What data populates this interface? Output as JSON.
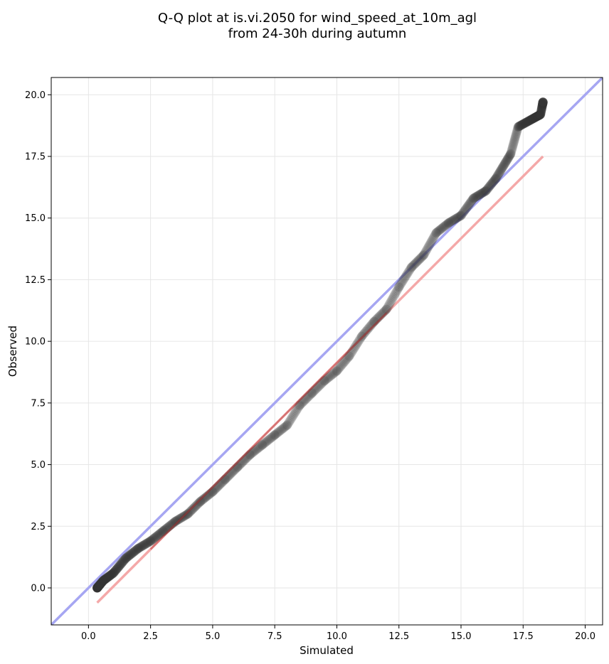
{
  "chart_data": {
    "type": "scatter",
    "title": "Q-Q plot at is.vi.2050 for wind_speed_at_10m_agl",
    "subtitle": "from 24-30h during autumn",
    "xlabel": "Simulated",
    "ylabel": "Observed",
    "xlim": [
      -1.5,
      20.7
    ],
    "ylim": [
      -1.5,
      20.7
    ],
    "xticks": [
      "0.0",
      "2.5",
      "5.0",
      "7.5",
      "10.0",
      "12.5",
      "15.0",
      "17.5",
      "20.0"
    ],
    "yticks": [
      "0.0",
      "2.5",
      "5.0",
      "7.5",
      "10.0",
      "12.5",
      "15.0",
      "17.5",
      "20.0"
    ],
    "grid": true,
    "colors": {
      "points": "#333333",
      "identity_line": "#a6a6f2",
      "fit_line": "#f4a8a8",
      "fit_segment_dark": "#b03030"
    },
    "identity_line": {
      "x": [
        -1.5,
        20.7
      ],
      "y": [
        -1.5,
        20.7
      ]
    },
    "fit_line": {
      "x": [
        0.35,
        18.3
      ],
      "y": [
        -0.6,
        17.5
      ]
    },
    "anchor_points": {
      "x": [
        0.35,
        0.6,
        1.0,
        1.5,
        2.0,
        2.5,
        3.0,
        3.5,
        4.0,
        4.5,
        5.0,
        5.5,
        6.0,
        6.5,
        7.0,
        7.5,
        8.0,
        8.5,
        9.0,
        9.5,
        10.0,
        10.5,
        11.0,
        11.5,
        12.0,
        12.5,
        13.0,
        13.5,
        14.0,
        14.5,
        15.0,
        15.5,
        16.0,
        16.4,
        17.0,
        17.3,
        18.2,
        18.3
      ],
      "y": [
        0.0,
        0.3,
        0.6,
        1.2,
        1.6,
        1.9,
        2.3,
        2.7,
        3.0,
        3.5,
        3.9,
        4.4,
        4.9,
        5.4,
        5.8,
        6.2,
        6.6,
        7.4,
        7.9,
        8.4,
        8.8,
        9.4,
        10.2,
        10.8,
        11.3,
        12.2,
        13.0,
        13.5,
        14.4,
        14.8,
        15.1,
        15.8,
        16.1,
        16.6,
        17.6,
        18.7,
        19.2,
        19.7
      ]
    },
    "n_points": 900
  }
}
